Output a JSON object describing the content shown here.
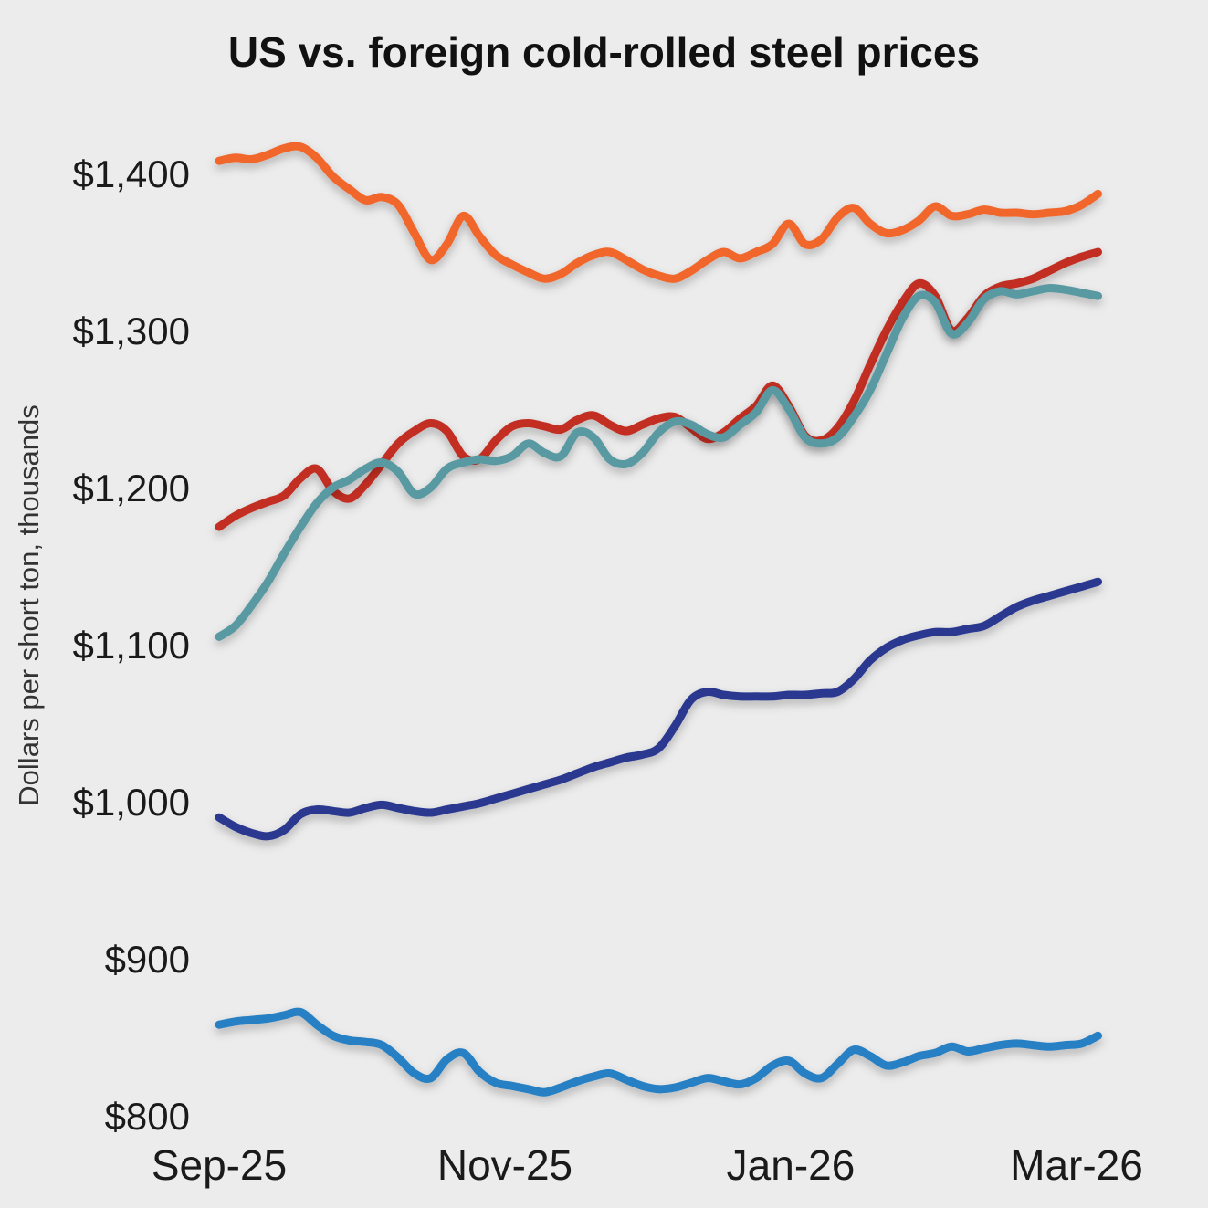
{
  "title": "US vs. foreign cold-rolled steel prices",
  "chart_data": {
    "type": "line",
    "title": "US vs. foreign cold-rolled steel prices",
    "xlabel": "",
    "ylabel": "Dollars per short ton, thousands",
    "x_unit": "months since Sep-25",
    "x_range": [
      0,
      6.15
    ],
    "y_range": [
      785,
      1435
    ],
    "grid": false,
    "legend": "none",
    "background_color": "#ececec",
    "text_color": "#1a1a1a",
    "x_ticks": [
      {
        "value": 0,
        "label": "Sep-25"
      },
      {
        "value": 2,
        "label": "Nov-25"
      },
      {
        "value": 4,
        "label": "Jan-26"
      },
      {
        "value": 6,
        "label": "Mar-26"
      }
    ],
    "y_ticks": [
      {
        "value": 800,
        "label": "$800"
      },
      {
        "value": 900,
        "label": "$900"
      },
      {
        "value": 1000,
        "label": "$1,000"
      },
      {
        "value": 1100,
        "label": "$1,100"
      },
      {
        "value": 1200,
        "label": "$1,200"
      },
      {
        "value": 1300,
        "label": "$1,300"
      },
      {
        "value": 1400,
        "label": "$1,400"
      }
    ],
    "series": [
      {
        "name": "orange",
        "color": "#f1662b",
        "values": [
          1408,
          1410,
          1409,
          1412,
          1416,
          1417,
          1410,
          1398,
          1390,
          1383,
          1385,
          1380,
          1362,
          1345,
          1355,
          1373,
          1360,
          1348,
          1342,
          1337,
          1333,
          1336,
          1343,
          1348,
          1350,
          1345,
          1339,
          1335,
          1333,
          1338,
          1345,
          1350,
          1346,
          1350,
          1355,
          1368,
          1355,
          1358,
          1372,
          1378,
          1368,
          1362,
          1364,
          1370,
          1379,
          1373,
          1374,
          1377,
          1375,
          1375,
          1374,
          1375,
          1376,
          1380,
          1387
        ]
      },
      {
        "name": "red",
        "color": "#c32e22",
        "values": [
          1175,
          1182,
          1187,
          1191,
          1195,
          1206,
          1212,
          1198,
          1193,
          1202,
          1215,
          1228,
          1236,
          1241,
          1236,
          1220,
          1218,
          1230,
          1239,
          1241,
          1239,
          1237,
          1243,
          1246,
          1240,
          1236,
          1240,
          1244,
          1245,
          1238,
          1231,
          1235,
          1244,
          1252,
          1265,
          1252,
          1233,
          1230,
          1238,
          1255,
          1278,
          1300,
          1318,
          1330,
          1322,
          1300,
          1308,
          1322,
          1328,
          1330,
          1333,
          1338,
          1343,
          1347,
          1350
        ]
      },
      {
        "name": "teal",
        "color": "#5899a2",
        "values": [
          1105,
          1112,
          1125,
          1140,
          1158,
          1175,
          1190,
          1200,
          1205,
          1212,
          1216,
          1210,
          1196,
          1200,
          1212,
          1216,
          1218,
          1217,
          1220,
          1228,
          1222,
          1220,
          1235,
          1232,
          1218,
          1215,
          1222,
          1235,
          1242,
          1240,
          1234,
          1232,
          1240,
          1248,
          1262,
          1250,
          1232,
          1228,
          1232,
          1245,
          1262,
          1285,
          1308,
          1322,
          1318,
          1298,
          1305,
          1320,
          1325,
          1323,
          1325,
          1327,
          1326,
          1324,
          1322
        ]
      },
      {
        "name": "navy",
        "color": "#2b3990",
        "values": [
          990,
          984,
          980,
          978,
          982,
          992,
          995,
          994,
          993,
          996,
          998,
          996,
          994,
          993,
          995,
          997,
          999,
          1002,
          1005,
          1008,
          1011,
          1014,
          1018,
          1022,
          1025,
          1028,
          1030,
          1034,
          1048,
          1065,
          1070,
          1068,
          1067,
          1067,
          1067,
          1068,
          1068,
          1069,
          1070,
          1078,
          1090,
          1098,
          1103,
          1106,
          1108,
          1108,
          1110,
          1112,
          1118,
          1124,
          1128,
          1131,
          1134,
          1137,
          1140
        ]
      },
      {
        "name": "light-blue",
        "color": "#2880c3",
        "values": [
          858,
          860,
          861,
          862,
          864,
          866,
          858,
          851,
          848,
          847,
          845,
          837,
          827,
          824,
          836,
          840,
          828,
          821,
          819,
          817,
          815,
          818,
          822,
          825,
          827,
          823,
          819,
          817,
          818,
          821,
          824,
          822,
          820,
          824,
          832,
          835,
          827,
          824,
          833,
          842,
          838,
          832,
          834,
          838,
          840,
          844,
          841,
          843,
          845,
          846,
          845,
          844,
          845,
          846,
          851
        ]
      }
    ]
  }
}
